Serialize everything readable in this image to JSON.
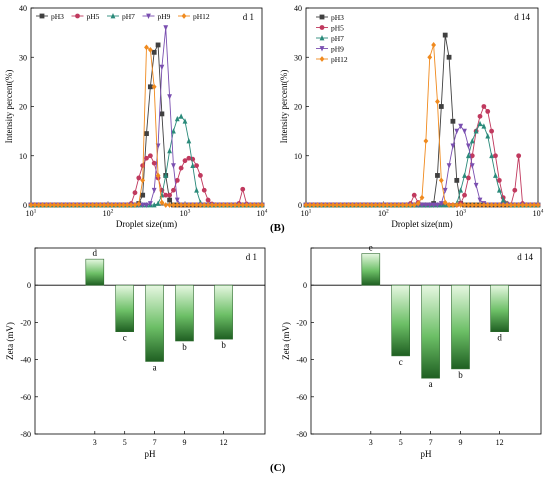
{
  "panel_labels": {
    "B": "(B)",
    "C": "(C)"
  },
  "chart_data": [
    {
      "type": "line",
      "id": "dls-d1",
      "corner_label": "d 1",
      "xlabel": "Droplet size(nm)",
      "ylabel": "Intensity percent(%)",
      "xscale": "log",
      "xlim": [
        10,
        10000
      ],
      "ylim": [
        0,
        40
      ],
      "xticks": [
        {
          "v": 10,
          "b": "10",
          "e": "1"
        },
        {
          "v": 100,
          "b": "10",
          "e": "2"
        },
        {
          "v": 1000,
          "b": "10",
          "e": "3"
        },
        {
          "v": 10000,
          "b": "10",
          "e": "4"
        }
      ],
      "yticks": [
        0,
        10,
        20,
        30,
        40
      ],
      "legend": "top, horizontal",
      "grid": false,
      "series": [
        {
          "name": "pH3",
          "color": "#404040",
          "marker": "square",
          "points": [
            [
              251,
              0.3
            ],
            [
              282,
              2
            ],
            [
              316,
              14.5
            ],
            [
              355,
              24
            ],
            [
              398,
              31
            ],
            [
              447,
              32.5
            ],
            [
              501,
              18.5
            ],
            [
              562,
              6
            ],
            [
              631,
              1
            ],
            [
              708,
              0
            ]
          ]
        },
        {
          "name": "pH5",
          "color": "#c0395e",
          "marker": "circle",
          "points": [
            [
              200,
              0.3
            ],
            [
              224,
              2.5
            ],
            [
              251,
              5.5
            ],
            [
              282,
              8
            ],
            [
              316,
              9.5
            ],
            [
              355,
              10
            ],
            [
              398,
              8.5
            ],
            [
              447,
              5.5
            ],
            [
              501,
              3
            ],
            [
              562,
              2
            ],
            [
              631,
              2
            ],
            [
              708,
              3
            ],
            [
              794,
              5
            ],
            [
              891,
              7.5
            ],
            [
              1000,
              9
            ],
            [
              1122,
              9.5
            ],
            [
              1259,
              9.3
            ],
            [
              1413,
              8
            ],
            [
              1585,
              6
            ],
            [
              1778,
              3
            ],
            [
              1995,
              1
            ],
            [
              2239,
              0.2
            ],
            [
              5012,
              0.3
            ],
            [
              5623,
              3.2
            ],
            [
              6310,
              0.2
            ]
          ]
        },
        {
          "name": "pH7",
          "color": "#2a8a7a",
          "marker": "triangle-up",
          "points": [
            [
              447,
              0.3
            ],
            [
              501,
              2
            ],
            [
              562,
              6
            ],
            [
              631,
              11
            ],
            [
              708,
              15
            ],
            [
              794,
              17.5
            ],
            [
              891,
              18
            ],
            [
              1000,
              17
            ],
            [
              1122,
              13
            ],
            [
              1259,
              8
            ],
            [
              1413,
              3
            ],
            [
              1585,
              0.5
            ]
          ]
        },
        {
          "name": "pH9",
          "color": "#7a4fb0",
          "marker": "triangle-down",
          "points": [
            [
              355,
              0.3
            ],
            [
              398,
              3
            ],
            [
              447,
              12
            ],
            [
              501,
              28
            ],
            [
              562,
              36
            ],
            [
              631,
              22
            ],
            [
              708,
              8
            ],
            [
              794,
              1
            ],
            [
              891,
              0
            ]
          ]
        },
        {
          "name": "pH12",
          "color": "#f08a1e",
          "marker": "diamond",
          "points": [
            [
              251,
              0.2
            ],
            [
              282,
              5
            ],
            [
              316,
              32
            ],
            [
              355,
              31.5
            ],
            [
              398,
              24
            ],
            [
              447,
              6
            ],
            [
              501,
              0.5
            ]
          ]
        }
      ]
    },
    {
      "type": "line",
      "id": "dls-d14",
      "corner_label": "d 14",
      "xlabel": "Droplet size(nm)",
      "ylabel": "Intensity percent(%)",
      "xscale": "log",
      "xlim": [
        10,
        10000
      ],
      "ylim": [
        0,
        40
      ],
      "xticks": [
        {
          "v": 10,
          "b": "10",
          "e": "1"
        },
        {
          "v": 100,
          "b": "10",
          "e": "2"
        },
        {
          "v": 1000,
          "b": "10",
          "e": "3"
        },
        {
          "v": 10000,
          "b": "10",
          "e": "4"
        }
      ],
      "yticks": [
        0,
        10,
        20,
        30,
        40
      ],
      "legend": "top-left, vertical",
      "grid": false,
      "series": [
        {
          "name": "pH3",
          "color": "#404040",
          "marker": "square",
          "points": [
            [
              447,
              0.3
            ],
            [
              501,
              6
            ],
            [
              562,
              20
            ],
            [
              631,
              34.5
            ],
            [
              708,
              30
            ],
            [
              794,
              17
            ],
            [
              891,
              5
            ],
            [
              1000,
              0.3
            ]
          ]
        },
        {
          "name": "pH5",
          "color": "#c0395e",
          "marker": "circle",
          "points": [
            [
              224,
              0.3
            ],
            [
              251,
              2
            ],
            [
              282,
              0.5
            ],
            [
              1000,
              0.3
            ],
            [
              1122,
              2
            ],
            [
              1259,
              5.5
            ],
            [
              1413,
              10
            ],
            [
              1585,
              15
            ],
            [
              1778,
              18
            ],
            [
              1995,
              20
            ],
            [
              2239,
              19
            ],
            [
              2512,
              15
            ],
            [
              2818,
              10
            ],
            [
              3162,
              5
            ],
            [
              3548,
              1.5
            ],
            [
              3981,
              0.3
            ],
            [
              5012,
              3
            ],
            [
              5623,
              10
            ],
            [
              6310,
              0.3
            ]
          ]
        },
        {
          "name": "pH7",
          "color": "#2a8a7a",
          "marker": "triangle-up",
          "points": [
            [
              891,
              0.3
            ],
            [
              1000,
              3
            ],
            [
              1122,
              6
            ],
            [
              1259,
              10
            ],
            [
              1413,
              13
            ],
            [
              1585,
              15
            ],
            [
              1778,
              16.5
            ],
            [
              1995,
              16
            ],
            [
              2239,
              14
            ],
            [
              2512,
              10
            ],
            [
              2818,
              6
            ],
            [
              3162,
              3
            ],
            [
              3548,
              1
            ],
            [
              3981,
              0.3
            ]
          ]
        },
        {
          "name": "pH9",
          "color": "#7a4fb0",
          "marker": "triangle-down",
          "points": [
            [
              562,
              0.3
            ],
            [
              631,
              3
            ],
            [
              708,
              8
            ],
            [
              794,
              12
            ],
            [
              891,
              15
            ],
            [
              1000,
              16
            ],
            [
              1122,
              15
            ],
            [
              1259,
              12
            ],
            [
              1413,
              8
            ],
            [
              1585,
              4
            ],
            [
              1778,
              1
            ],
            [
              1995,
              0.3
            ]
          ]
        },
        {
          "name": "pH12",
          "color": "#f08a1e",
          "marker": "diamond",
          "points": [
            [
              282,
              0.3
            ],
            [
              316,
              1.5
            ],
            [
              355,
              13
            ],
            [
              398,
              30
            ],
            [
              447,
              32.5
            ],
            [
              501,
              21
            ],
            [
              562,
              5
            ],
            [
              631,
              0.5
            ]
          ]
        }
      ]
    },
    {
      "type": "bar",
      "id": "zeta-d1",
      "corner_label": "d 1",
      "xlabel": "pH",
      "ylabel": "Zeta (mV)",
      "ylim": [
        -80,
        20
      ],
      "yticks": [
        -80,
        -60,
        -40,
        -20,
        0,
        20
      ],
      "categories": [
        "3",
        "5",
        "7",
        "9",
        "12"
      ],
      "values": [
        14,
        -25,
        -41,
        -30,
        -29
      ],
      "letters": [
        "d",
        "c",
        "a",
        "b",
        "b"
      ],
      "grid": false
    },
    {
      "type": "bar",
      "id": "zeta-d14",
      "corner_label": "d 14",
      "xlabel": "pH",
      "ylabel": "Zeta (mV)",
      "ylim": [
        -80,
        20
      ],
      "yticks": [
        -80,
        -60,
        -40,
        -20,
        0,
        20
      ],
      "categories": [
        "3",
        "5",
        "7",
        "9",
        "12"
      ],
      "values": [
        17,
        -38,
        -50,
        -45,
        -25
      ],
      "letters": [
        "e",
        "c",
        "a",
        "b",
        "d"
      ],
      "grid": false
    }
  ]
}
